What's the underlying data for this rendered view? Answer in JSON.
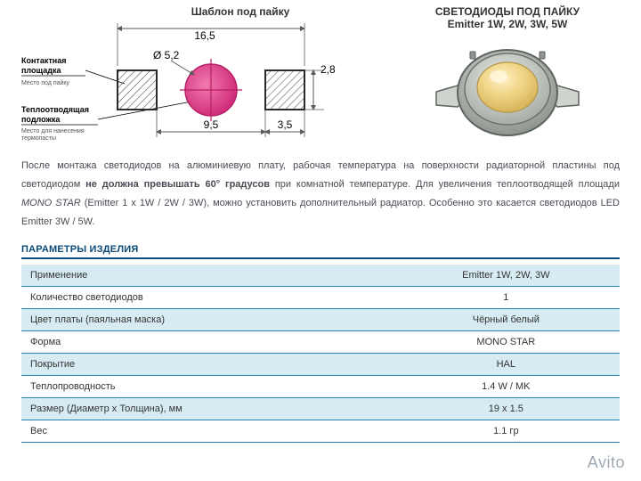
{
  "diagram": {
    "title": "Шаблон под пайку",
    "labels": {
      "contact_pad_l1": "Контактная",
      "contact_pad_l2": "площадка",
      "contact_note": "Место под пайку",
      "heatsink_l1": "Теплоотводящая",
      "heatsink_l2": "подложка",
      "heatsink_note_l1": "Место для нанесения",
      "heatsink_note_l2": "термопасты"
    },
    "dims": {
      "overall": "16,5",
      "dia": "Ø 5,2",
      "center_gap": "9,5",
      "right_gap": "3,5",
      "height": "2,8"
    },
    "colors": {
      "dim_line": "#5a5a5a",
      "pad_stroke": "#2a2a2a",
      "hatch": "#5a5a5a",
      "circle_fill": "#E7408C",
      "circle_fill2": "#D12F7B",
      "crosshair": "#B81E63"
    }
  },
  "led": {
    "title": "СВЕТОДИОДЫ ПОД ПАЙКУ",
    "subtitle": "Emitter  1W, 2W, 3W, 5W",
    "body_color": "#bfc4c0",
    "body_color2": "#9fa5a0",
    "ring_color": "#d7dbd6",
    "ring_color2": "#aeb3ae",
    "dome_color": "#f1d68a",
    "dome_color2": "#e6c56b",
    "pad_color": "#cfd3cd",
    "outline": "#5e6560"
  },
  "paragraph": {
    "t1": "После монтажа светодиодов на алюминиевую плату, рабочая температура на поверхности радиаторной пластины под светодиодом ",
    "strong": "не должна превышать 60° градусов",
    "t2": " при комнатной температуре. Для увеличения теплоотводящей площади ",
    "em": "MONO STAR",
    "t3": " (Emitter 1 x 1W / 2W / 3W), можно установить дополнительный радиатор. Особенно это касается светодиодов LED Emitter 3W / 5W."
  },
  "section_header": "ПАРАМЕТРЫ ИЗДЕЛИЯ",
  "rows": [
    {
      "k": "Применение",
      "v": "Emitter 1W, 2W, 3W"
    },
    {
      "k": "Количество светодиодов",
      "v": "1"
    },
    {
      "k": "Цвет платы (паяльная маска)",
      "v": "Чёрный       белый"
    },
    {
      "k": "Форма",
      "v": "MONO STAR"
    },
    {
      "k": "Покрытие",
      "v": "HAL"
    },
    {
      "k": "Теплопроводность",
      "v": "1.4 W / MK"
    },
    {
      "k": "Размер (Диаметр x Толщина), мм",
      "v": "19 x 1.5"
    },
    {
      "k": "Вес",
      "v": "1.1 гр"
    }
  ],
  "watermark": "Avito"
}
